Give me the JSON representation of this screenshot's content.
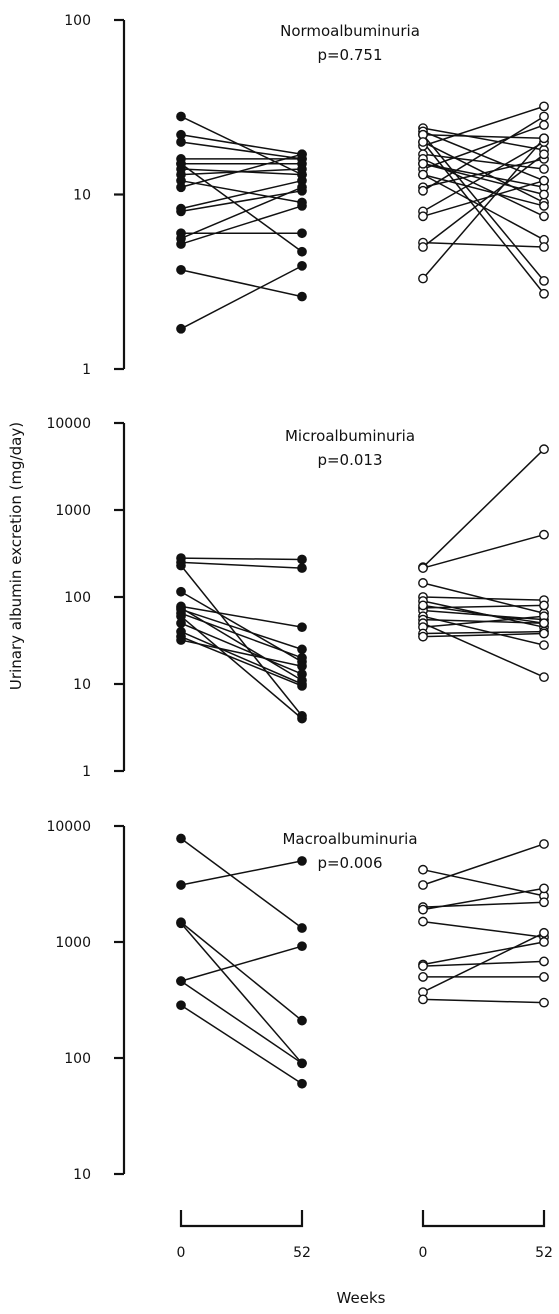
{
  "figure": {
    "ylabel": "Urinary albumin excretion (mg/day)",
    "xlabel": "Weeks",
    "x_ticks": [
      "0",
      "52",
      "0",
      "52"
    ]
  },
  "chart_data": [
    {
      "type": "line",
      "title": "Normoalbuminuria",
      "subtitle": "p=0.751",
      "yscale": "log",
      "ylim": [
        1,
        100
      ],
      "yticks": [
        "1",
        "10",
        "100"
      ],
      "groups": [
        {
          "marker": "filled",
          "x": [
            "0",
            "52"
          ],
          "pairs": [
            [
              28,
              13
            ],
            [
              22,
              17
            ],
            [
              20,
              16
            ],
            [
              16,
              16
            ],
            [
              15,
              15
            ],
            [
              14,
              13
            ],
            [
              13,
              14
            ],
            [
              12,
              9
            ],
            [
              11,
              17
            ],
            [
              8.3,
              12
            ],
            [
              8,
              10.5
            ],
            [
              6,
              6
            ],
            [
              5.6,
              11
            ],
            [
              5.2,
              8.6
            ],
            [
              3.7,
              2.6
            ],
            [
              15,
              4.7
            ],
            [
              1.7,
              3.9
            ]
          ]
        },
        {
          "marker": "open",
          "x": [
            "0",
            "52"
          ],
          "pairs": [
            [
              24,
              18
            ],
            [
              23,
              12
            ],
            [
              22,
              21
            ],
            [
              20,
              9
            ],
            [
              19,
              32
            ],
            [
              17,
              14
            ],
            [
              16,
              7.5
            ],
            [
              15,
              11
            ],
            [
              14,
              25
            ],
            [
              13,
              5.5
            ],
            [
              11,
              16
            ],
            [
              10.5,
              28
            ],
            [
              8,
              20
            ],
            [
              7.5,
              12
            ],
            [
              22,
              3.2
            ],
            [
              20,
              2.7
            ],
            [
              5.3,
              5
            ],
            [
              5,
              17
            ],
            [
              3.3,
              21
            ],
            [
              15,
              10
            ],
            [
              13,
              8.6
            ]
          ]
        }
      ]
    },
    {
      "type": "line",
      "title": "Microalbuminuria",
      "subtitle": "p=0.013",
      "yscale": "log",
      "ylim": [
        1,
        10000
      ],
      "yticks": [
        "1",
        "10",
        "100",
        "1000",
        "10000"
      ],
      "groups": [
        {
          "marker": "filled",
          "x": [
            "0",
            "52"
          ],
          "pairs": [
            [
              280,
              270
            ],
            [
              250,
              215
            ],
            [
              230,
              4.3
            ],
            [
              115,
              18
            ],
            [
              78,
              45
            ],
            [
              72,
              25
            ],
            [
              65,
              20
            ],
            [
              50,
              13
            ],
            [
              40,
              10
            ],
            [
              35,
              9.5
            ],
            [
              32,
              16
            ],
            [
              75,
              11
            ],
            [
              60,
              4
            ]
          ]
        },
        {
          "marker": "open",
          "x": [
            "0",
            "52"
          ],
          "pairs": [
            [
              220,
              5000
            ],
            [
              215,
              520
            ],
            [
              145,
              65
            ],
            [
              100,
              92
            ],
            [
              90,
              45
            ],
            [
              75,
              80
            ],
            [
              70,
              55
            ],
            [
              60,
              28
            ],
            [
              55,
              50
            ],
            [
              50,
              12
            ],
            [
              45,
              60
            ],
            [
              38,
              40
            ],
            [
              35,
              38
            ],
            [
              80,
              50
            ]
          ]
        }
      ]
    },
    {
      "type": "line",
      "title": "Macroalbuminuria",
      "subtitle": "p=0.006",
      "yscale": "log",
      "ylim": [
        10,
        10000
      ],
      "yticks": [
        "10",
        "100",
        "1000",
        "10000"
      ],
      "groups": [
        {
          "marker": "filled",
          "x": [
            "0",
            "52"
          ],
          "pairs": [
            [
              7800,
              1320
            ],
            [
              3100,
              5000
            ],
            [
              1480,
              210
            ],
            [
              1450,
              90
            ],
            [
              460,
              920
            ],
            [
              460,
              90
            ],
            [
              285,
              60
            ]
          ]
        },
        {
          "marker": "open",
          "x": [
            "0",
            "52"
          ],
          "pairs": [
            [
              4200,
              2500
            ],
            [
              3100,
              7000
            ],
            [
              2000,
              2200
            ],
            [
              1900,
              2900
            ],
            [
              1500,
              1100
            ],
            [
              640,
              1000
            ],
            [
              620,
              680
            ],
            [
              500,
              500
            ],
            [
              370,
              1200
            ],
            [
              320,
              300
            ]
          ]
        }
      ]
    }
  ]
}
